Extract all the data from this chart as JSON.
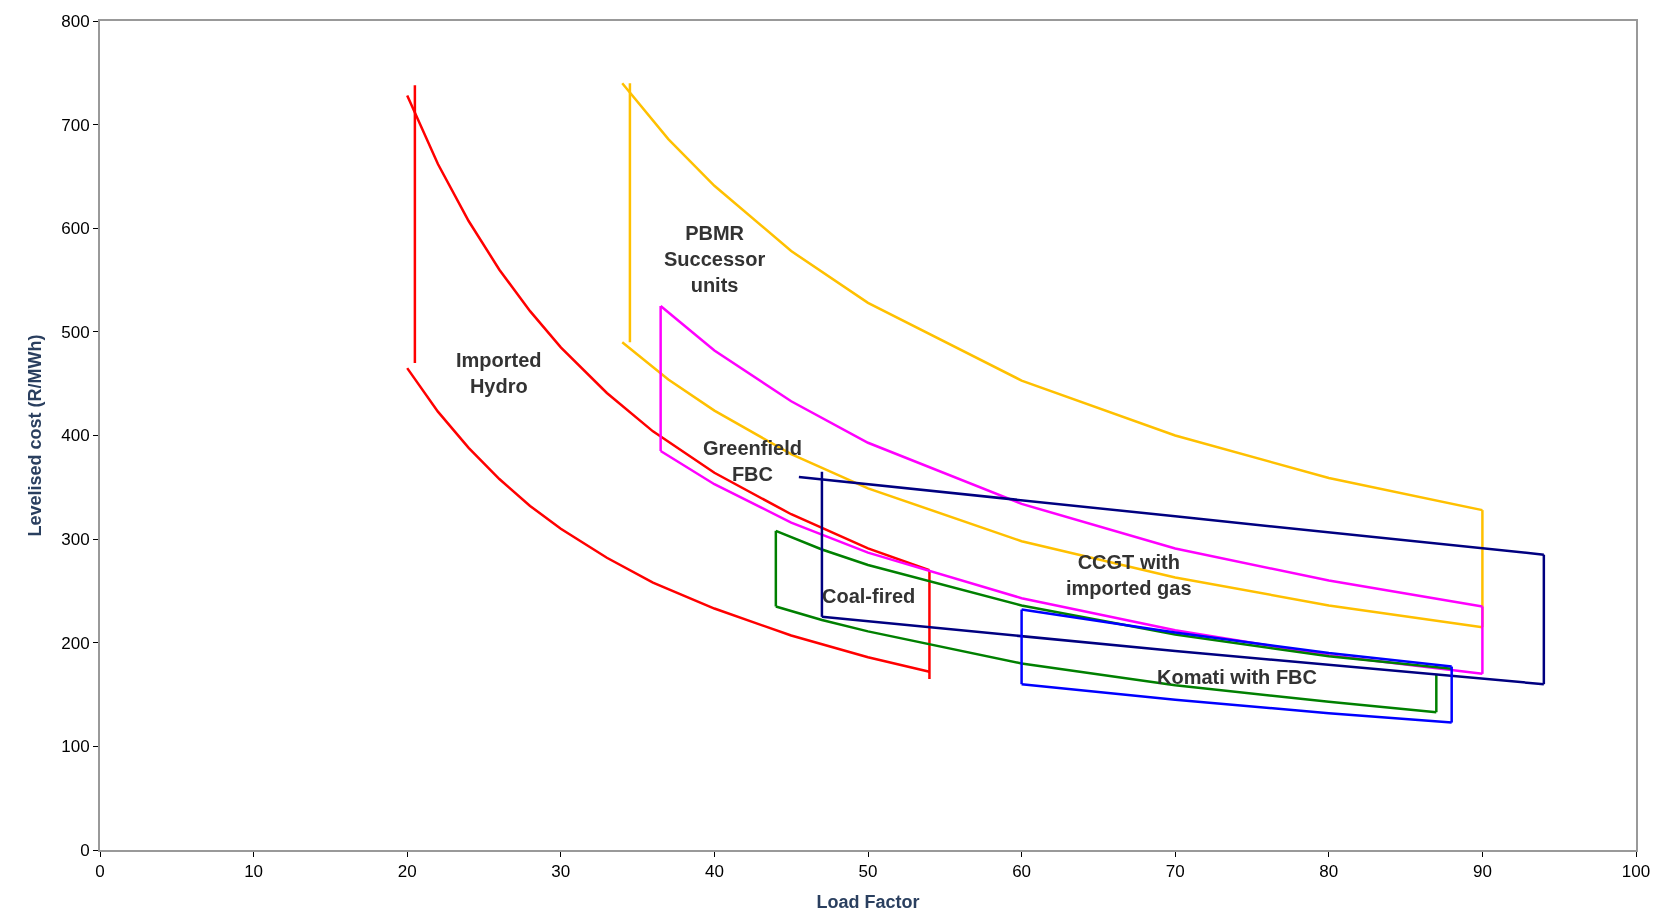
{
  "chart_data": {
    "type": "line",
    "xlabel": "Load Factor",
    "ylabel": "Levelised cost (R/MWh)",
    "xlim": [
      0,
      100
    ],
    "xticks": [
      0,
      10,
      20,
      30,
      40,
      50,
      60,
      70,
      80,
      90,
      100
    ],
    "ylim": [
      0,
      800
    ],
    "yticks": [
      0,
      100,
      200,
      300,
      400,
      500,
      600,
      700,
      800
    ],
    "marker": "none",
    "line_style": "solid",
    "series": [
      {
        "color": "#ff0000",
        "x": [
          20,
          22,
          24,
          26,
          28,
          30,
          33,
          36,
          40,
          45,
          50,
          54
        ],
        "values": [
          728,
          662,
          607,
          560,
          520,
          485,
          441,
          404,
          364,
          324,
          291,
          270
        ]
      },
      {
        "color": "#ff0000",
        "x": [
          20,
          22,
          24,
          26,
          28,
          30,
          33,
          36,
          40,
          45,
          50,
          54
        ],
        "values": [
          465,
          423,
          388,
          358,
          332,
          310,
          282,
          258,
          233,
          207,
          186,
          172
        ]
      },
      {
        "color": "#ff0000",
        "x": [
          20.5,
          20.5
        ],
        "values": [
          470,
          738
        ]
      },
      {
        "color": "#ff0000",
        "x": [
          54,
          54
        ],
        "values": [
          165,
          270
        ]
      },
      {
        "color": "#ffc000",
        "x": [
          34,
          37,
          40,
          45,
          50,
          60,
          70,
          80,
          90
        ],
        "values": [
          740,
          686,
          641,
          578,
          528,
          453,
          400,
          359,
          328
        ]
      },
      {
        "color": "#ffc000",
        "x": [
          34,
          37,
          40,
          45,
          50,
          60,
          70,
          80,
          90
        ],
        "values": [
          490,
          454,
          424,
          382,
          349,
          298,
          263,
          236,
          215
        ]
      },
      {
        "color": "#ffc000",
        "x": [
          34.5,
          34.5
        ],
        "values": [
          490,
          740
        ]
      },
      {
        "color": "#ffc000",
        "x": [
          90,
          90
        ],
        "values": [
          215,
          328
        ]
      },
      {
        "color": "#ff00ff",
        "x": [
          36.5,
          40,
          45,
          50,
          60,
          70,
          80,
          90
        ],
        "values": [
          525,
          482,
          433,
          393,
          334,
          291,
          260,
          235
        ]
      },
      {
        "color": "#ff00ff",
        "x": [
          36.5,
          40,
          45,
          50,
          60,
          70,
          80,
          90
        ],
        "values": [
          385,
          353,
          316,
          287,
          243,
          212,
          188,
          170
        ]
      },
      {
        "color": "#ff00ff",
        "x": [
          36.5,
          36.5
        ],
        "values": [
          385,
          525
        ]
      },
      {
        "color": "#ff00ff",
        "x": [
          90,
          90
        ],
        "values": [
          170,
          235
        ]
      },
      {
        "color": "#008000",
        "x": [
          44,
          47,
          50,
          60,
          70,
          80,
          88
        ],
        "values": [
          308,
          290,
          275,
          236,
          208,
          187,
          175
        ]
      },
      {
        "color": "#008000",
        "x": [
          44,
          47,
          50,
          60,
          70,
          80,
          87
        ],
        "values": [
          235,
          222,
          211,
          180,
          159,
          143,
          133
        ]
      },
      {
        "color": "#008000",
        "x": [
          44,
          44
        ],
        "values": [
          235,
          308
        ]
      },
      {
        "color": "#008000",
        "x": [
          87,
          87
        ],
        "values": [
          133,
          170
        ]
      },
      {
        "color": "#000080",
        "x": [
          45.5,
          70,
          94
        ],
        "values": [
          360,
          322,
          285
        ]
      },
      {
        "color": "#000080",
        "x": [
          47,
          70,
          94
        ],
        "values": [
          225,
          192,
          160
        ]
      },
      {
        "color": "#000080",
        "x": [
          47,
          47
        ],
        "values": [
          225,
          365
        ]
      },
      {
        "color": "#000080",
        "x": [
          94,
          94
        ],
        "values": [
          160,
          285
        ]
      },
      {
        "color": "#0000ff",
        "x": [
          60,
          70,
          80,
          88
        ],
        "values": [
          232,
          210,
          190,
          177
        ]
      },
      {
        "color": "#0000ff",
        "x": [
          60,
          70,
          80,
          88
        ],
        "values": [
          160,
          145,
          132,
          123
        ]
      },
      {
        "color": "#0000ff",
        "x": [
          60,
          60
        ],
        "values": [
          160,
          232
        ]
      },
      {
        "color": "#0000ff",
        "x": [
          88,
          88
        ],
        "values": [
          123,
          177
        ]
      }
    ],
    "annotations": [
      {
        "text": "Imported\nHydro",
        "x": 30,
        "y": 485
      },
      {
        "text": "PBMR\nSuccessor\nunits",
        "x": 34.5,
        "y": 570
      },
      {
        "text": "Greenfield\nFBC",
        "x": 40,
        "y": 353
      },
      {
        "text": "Coal-fired",
        "x": 50,
        "y": 275
      },
      {
        "text": "CCGT with\nimported gas",
        "x": 70,
        "y": 322
      },
      {
        "text": "Komati with FBC",
        "x": 80,
        "y": 190
      }
    ]
  }
}
